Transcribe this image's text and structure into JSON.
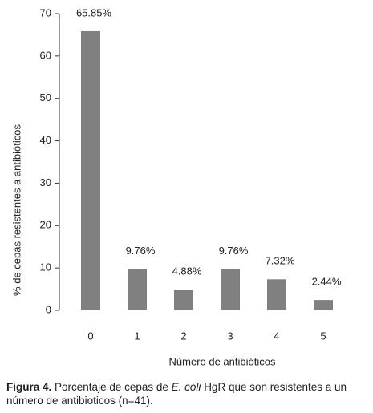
{
  "chart_data": {
    "type": "bar",
    "y_label": "% de cepas resistentes a antibióticos",
    "x_label": "Número de antibióticos",
    "categories": [
      "0",
      "1",
      "2",
      "3",
      "4",
      "5"
    ],
    "values": [
      65.85,
      9.76,
      4.88,
      9.76,
      7.32,
      2.44
    ],
    "value_labels": [
      "65.85%",
      "9.76%",
      "4.88%",
      "9.76%",
      "7.32%",
      "2.44%"
    ],
    "color": "#808080",
    "ylim": [
      0,
      70
    ],
    "yticks": [
      0,
      10,
      20,
      30,
      40,
      50,
      60,
      70
    ],
    "grid": false
  },
  "caption": {
    "label": "Figura 4.",
    "text_before": "Porcentaje de cepas de",
    "species": "E. coli",
    "text_after": "HgR que son resistentes a un número de antibioticos (n=41)."
  }
}
